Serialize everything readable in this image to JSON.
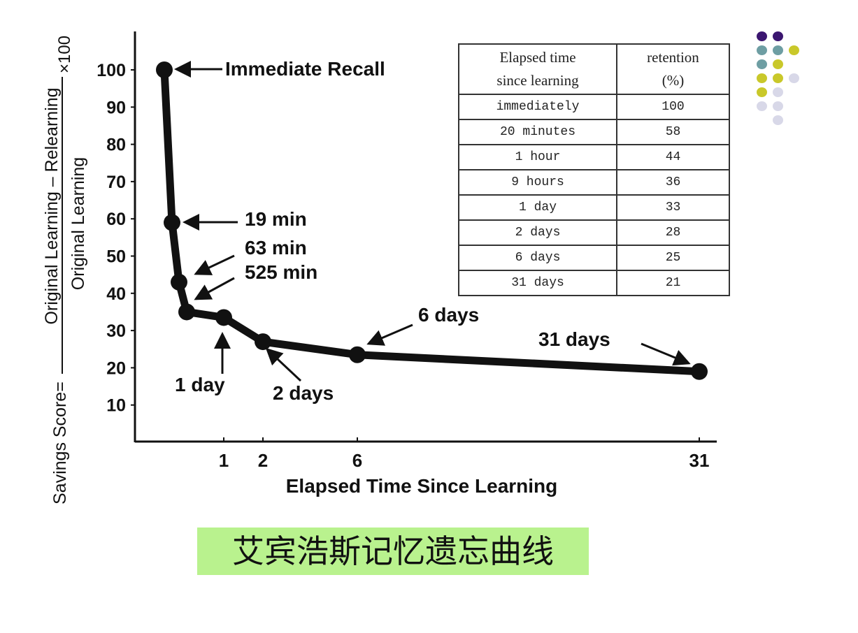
{
  "chart_data": {
    "type": "line",
    "xlabel": "Elapsed Time Since Learning",
    "ylabel": {
      "prefix": "Savings Score=",
      "numerator": "Original Learning – Relearning",
      "denominator": "Original Learning",
      "multiplier": "×100"
    },
    "x_ticks": [
      "1",
      "2",
      "6",
      "31"
    ],
    "x_tick_values_days": [
      1,
      2,
      6,
      31
    ],
    "y_ticks": [
      10,
      20,
      30,
      40,
      50,
      60,
      70,
      80,
      90,
      100
    ],
    "ylim": [
      0,
      100
    ],
    "grid": false,
    "series": [
      {
        "points": [
          {
            "x_days": 0,
            "y": 100,
            "label": "Immediate Recall"
          },
          {
            "x_days": 0.0132,
            "y": 59,
            "label": "19 min"
          },
          {
            "x_days": 0.0438,
            "y": 43,
            "label": "63 min"
          },
          {
            "x_days": 0.3646,
            "y": 35,
            "label": "525 min"
          },
          {
            "x_days": 1,
            "y": 33.5,
            "label": "1 day"
          },
          {
            "x_days": 2,
            "y": 27,
            "label": "2 days"
          },
          {
            "x_days": 6,
            "y": 23.5,
            "label": "6 days"
          },
          {
            "x_days": 31,
            "y": 19,
            "label": "31 days"
          }
        ]
      }
    ]
  },
  "table": {
    "headers": [
      "Elapsed time\nsince learning",
      "retention\n(%)"
    ],
    "header_lines": [
      [
        "Elapsed time",
        "since learning"
      ],
      [
        "retention",
        "(%)"
      ]
    ],
    "rows": [
      [
        "immediately",
        "100"
      ],
      [
        "20 minutes",
        "58"
      ],
      [
        "1 hour",
        "44"
      ],
      [
        "9 hours",
        "36"
      ],
      [
        "1 day",
        "33"
      ],
      [
        "2 days",
        "28"
      ],
      [
        "6 days",
        "25"
      ],
      [
        "31 days",
        "21"
      ]
    ]
  },
  "caption": "艾宾浩斯记忆遗忘曲线",
  "decor_dot_colors": [
    "#3b1670",
    "#6e9ea3",
    "#c9c82a",
    "#d8d8e8"
  ]
}
